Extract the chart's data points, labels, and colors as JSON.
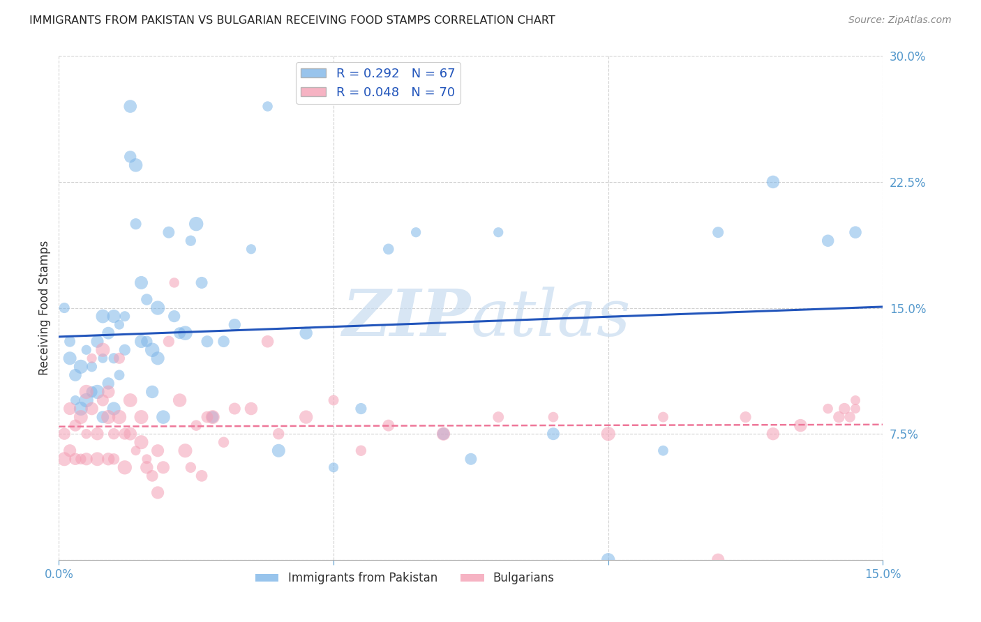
{
  "title": "IMMIGRANTS FROM PAKISTAN VS BULGARIAN RECEIVING FOOD STAMPS CORRELATION CHART",
  "source": "Source: ZipAtlas.com",
  "ylabel": "Receiving Food Stamps",
  "x_min": 0.0,
  "x_max": 0.15,
  "y_min": 0.0,
  "y_max": 0.3,
  "x_ticks": [
    0.0,
    0.05,
    0.1,
    0.15
  ],
  "x_tick_labels": [
    "0.0%",
    "",
    "",
    "15.0%"
  ],
  "y_ticks": [
    0.0,
    0.075,
    0.15,
    0.225,
    0.3
  ],
  "y_tick_labels": [
    "",
    "7.5%",
    "15.0%",
    "22.5%",
    "30.0%"
  ],
  "pakistan_R": 0.292,
  "pakistan_N": 67,
  "bulgarian_R": 0.048,
  "bulgarian_N": 70,
  "pakistan_color": "#7EB6E8",
  "bulgarian_color": "#F4A0B5",
  "pakistan_line_color": "#2255BB",
  "bulgarian_line_color": "#EE7799",
  "watermark_color": "#C8DCF0",
  "background_color": "#FFFFFF",
  "pakistan_scatter_x": [
    0.001,
    0.002,
    0.002,
    0.003,
    0.003,
    0.004,
    0.004,
    0.005,
    0.005,
    0.006,
    0.006,
    0.007,
    0.007,
    0.008,
    0.008,
    0.008,
    0.009,
    0.009,
    0.01,
    0.01,
    0.01,
    0.011,
    0.011,
    0.012,
    0.012,
    0.013,
    0.013,
    0.014,
    0.014,
    0.015,
    0.015,
    0.016,
    0.016,
    0.017,
    0.017,
    0.018,
    0.018,
    0.019,
    0.02,
    0.021,
    0.022,
    0.023,
    0.024,
    0.025,
    0.026,
    0.027,
    0.028,
    0.03,
    0.032,
    0.035,
    0.038,
    0.04,
    0.045,
    0.05,
    0.055,
    0.06,
    0.065,
    0.07,
    0.075,
    0.08,
    0.09,
    0.1,
    0.11,
    0.12,
    0.13,
    0.14,
    0.145
  ],
  "pakistan_scatter_y": [
    0.15,
    0.12,
    0.13,
    0.11,
    0.095,
    0.115,
    0.09,
    0.125,
    0.095,
    0.115,
    0.1,
    0.13,
    0.1,
    0.145,
    0.12,
    0.085,
    0.135,
    0.105,
    0.145,
    0.12,
    0.09,
    0.14,
    0.11,
    0.145,
    0.125,
    0.27,
    0.24,
    0.235,
    0.2,
    0.165,
    0.13,
    0.155,
    0.13,
    0.125,
    0.1,
    0.15,
    0.12,
    0.085,
    0.195,
    0.145,
    0.135,
    0.135,
    0.19,
    0.2,
    0.165,
    0.13,
    0.085,
    0.13,
    0.14,
    0.185,
    0.27,
    0.065,
    0.135,
    0.055,
    0.09,
    0.185,
    0.195,
    0.075,
    0.06,
    0.195,
    0.075,
    0.0,
    0.065,
    0.195,
    0.225,
    0.19,
    0.195
  ],
  "bulgarian_scatter_x": [
    0.001,
    0.001,
    0.002,
    0.002,
    0.003,
    0.003,
    0.004,
    0.004,
    0.005,
    0.005,
    0.005,
    0.006,
    0.006,
    0.007,
    0.007,
    0.008,
    0.008,
    0.009,
    0.009,
    0.009,
    0.01,
    0.01,
    0.011,
    0.011,
    0.012,
    0.012,
    0.013,
    0.013,
    0.014,
    0.015,
    0.015,
    0.016,
    0.016,
    0.017,
    0.018,
    0.018,
    0.019,
    0.02,
    0.021,
    0.022,
    0.023,
    0.024,
    0.025,
    0.026,
    0.027,
    0.028,
    0.03,
    0.032,
    0.035,
    0.038,
    0.04,
    0.045,
    0.05,
    0.055,
    0.06,
    0.07,
    0.08,
    0.09,
    0.1,
    0.11,
    0.12,
    0.125,
    0.13,
    0.135,
    0.14,
    0.142,
    0.143,
    0.144,
    0.145,
    0.145
  ],
  "bulgarian_scatter_y": [
    0.075,
    0.06,
    0.09,
    0.065,
    0.08,
    0.06,
    0.085,
    0.06,
    0.1,
    0.075,
    0.06,
    0.12,
    0.09,
    0.075,
    0.06,
    0.125,
    0.095,
    0.1,
    0.085,
    0.06,
    0.075,
    0.06,
    0.12,
    0.085,
    0.075,
    0.055,
    0.095,
    0.075,
    0.065,
    0.085,
    0.07,
    0.06,
    0.055,
    0.05,
    0.065,
    0.04,
    0.055,
    0.13,
    0.165,
    0.095,
    0.065,
    0.055,
    0.08,
    0.05,
    0.085,
    0.085,
    0.07,
    0.09,
    0.09,
    0.13,
    0.075,
    0.085,
    0.095,
    0.065,
    0.08,
    0.075,
    0.085,
    0.085,
    0.075,
    0.085,
    0.0,
    0.085,
    0.075,
    0.08,
    0.09,
    0.085,
    0.09,
    0.085,
    0.095,
    0.09
  ]
}
